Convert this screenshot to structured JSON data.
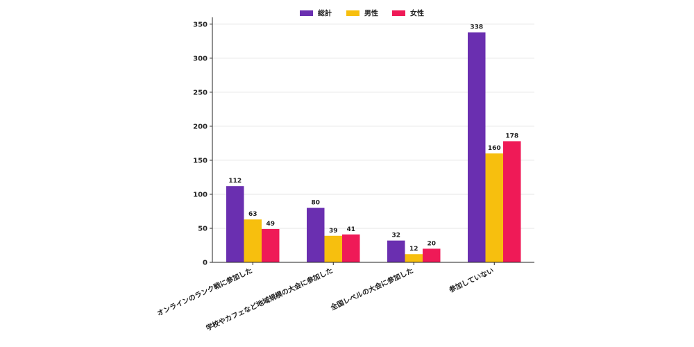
{
  "chart_data": {
    "type": "bar",
    "categories": [
      "オンラインのランク戦に参加した",
      "学校やカフェなど地域規模の大会に参加した",
      "全国レベルの大会に参加した",
      "参加していない"
    ],
    "series": [
      {
        "name": "総計",
        "color": "#6a2fb0",
        "values": [
          112,
          80,
          32,
          338
        ]
      },
      {
        "name": "男性",
        "color": "#f7bf0e",
        "values": [
          63,
          39,
          12,
          160
        ]
      },
      {
        "name": "女性",
        "color": "#ef1a57",
        "values": [
          49,
          41,
          20,
          178
        ]
      }
    ],
    "ylim": [
      0,
      360
    ],
    "yticks": [
      0,
      50,
      100,
      150,
      200,
      250,
      300,
      350
    ],
    "grid": true,
    "legend_position": "top-center",
    "title": "",
    "xlabel": "",
    "ylabel": ""
  }
}
